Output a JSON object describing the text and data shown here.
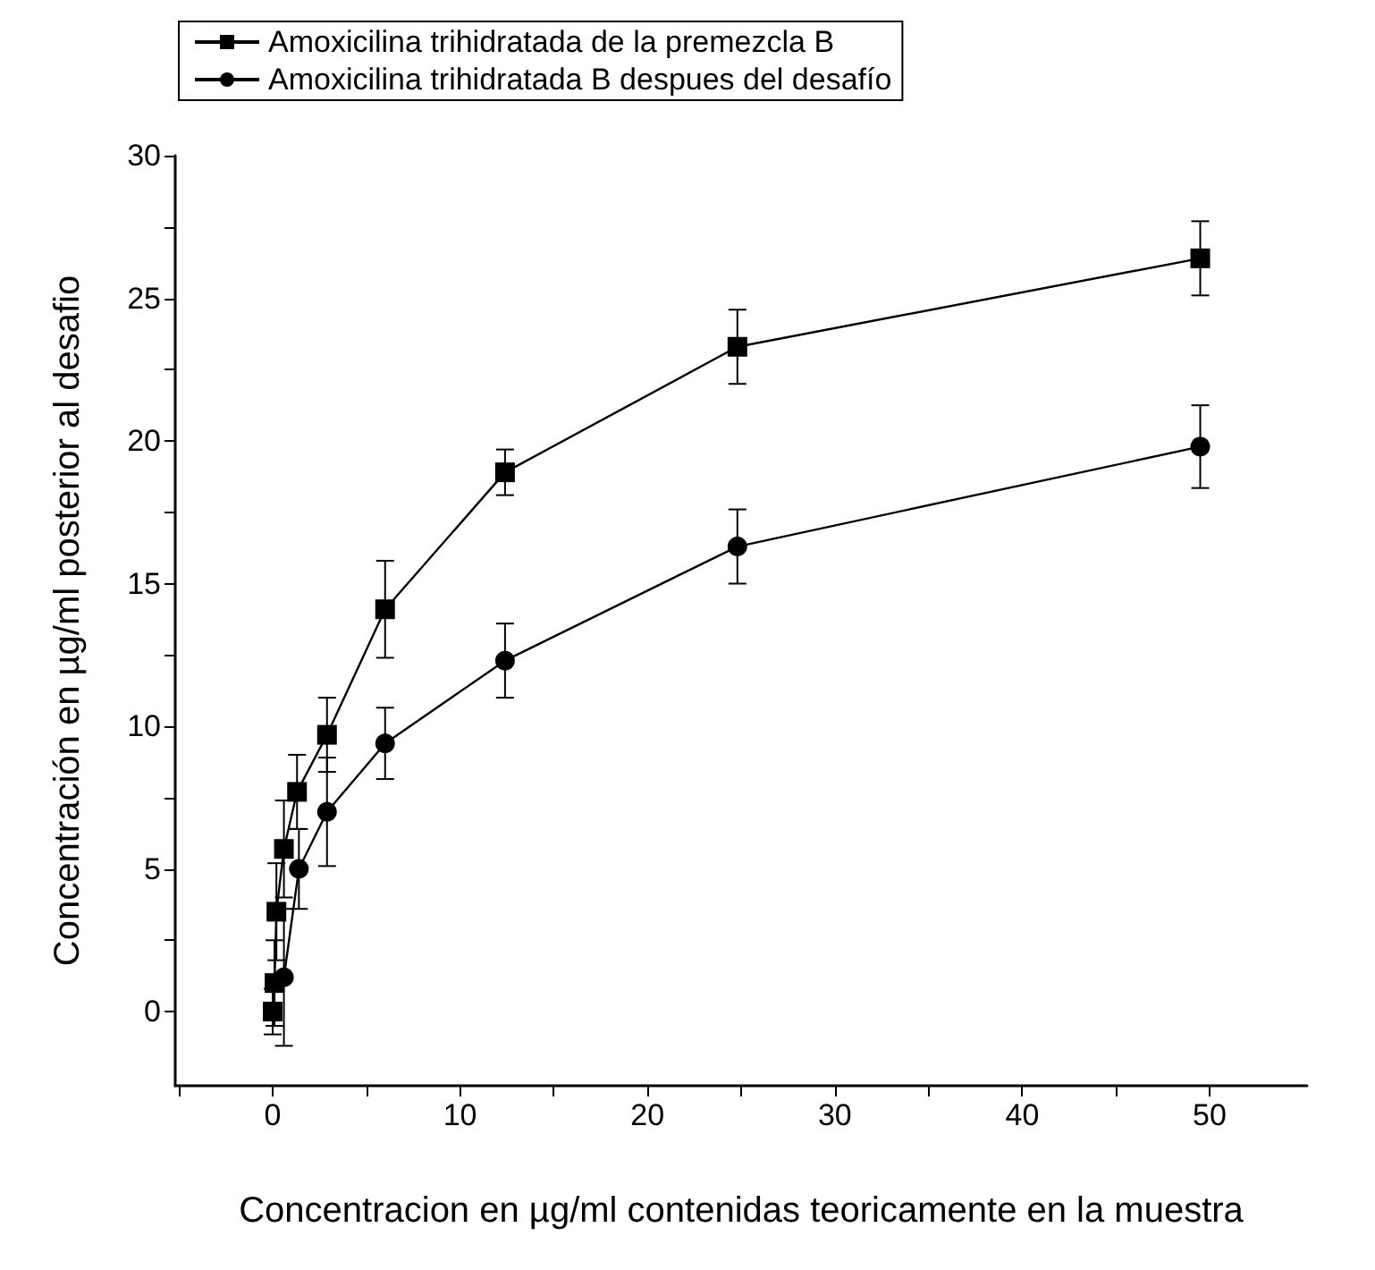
{
  "chart_data": {
    "type": "line",
    "xlabel": "Concentracion en µg/ml contenidas teoricamente en la muestra",
    "ylabel": "Concentración en µg/ml posterior al desafio",
    "xlim": [
      -5.2,
      55.2
    ],
    "ylim": [
      -2.6,
      30
    ],
    "xticks": [
      {
        "value": -5,
        "label": null
      },
      0,
      {
        "value": 5,
        "label": null
      },
      10,
      {
        "value": 15,
        "label": null
      },
      20,
      {
        "value": 25,
        "label": null
      },
      30,
      {
        "value": 35,
        "label": null
      },
      40,
      {
        "value": 45,
        "label": null
      },
      50
    ],
    "yticks": [
      0,
      {
        "value": 2.5,
        "label": null
      },
      5,
      {
        "value": 7.5,
        "label": null
      },
      10,
      {
        "value": 12.5,
        "label": null
      },
      15,
      {
        "value": 17.5,
        "label": null
      },
      20,
      {
        "value": 22.5,
        "label": null
      },
      25,
      {
        "value": 27.5,
        "label": null
      },
      30
    ],
    "series": [
      {
        "name": "Amoxicilina trihidratada de la premezcla B",
        "color": "#000000",
        "marker": "square",
        "x": [
          0,
          0.1,
          0.2,
          0.6,
          1.3,
          2.9,
          6,
          12.4,
          24.8,
          49.5
        ],
        "values": [
          0,
          1,
          3.5,
          5.7,
          7.7,
          9.7,
          14.1,
          18.9,
          23.3,
          26.4
        ],
        "errors": [
          0.8,
          1.5,
          1.7,
          1.7,
          1.3,
          1.3,
          1.7,
          0.8,
          1.3,
          1.3
        ]
      },
      {
        "name": "Amoxicilina trihidratada B despues del desafío",
        "color": "#000000",
        "marker": "circle",
        "x": [
          0.6,
          1.4,
          2.9,
          6,
          12.4,
          24.8,
          49.5
        ],
        "values": [
          1.2,
          5,
          7,
          9.4,
          12.3,
          16.3,
          19.8
        ],
        "errors": [
          2.4,
          1.4,
          1.9,
          1.25,
          1.3,
          1.3,
          1.45
        ]
      }
    ],
    "legend": "top left",
    "line_style": "solid"
  }
}
